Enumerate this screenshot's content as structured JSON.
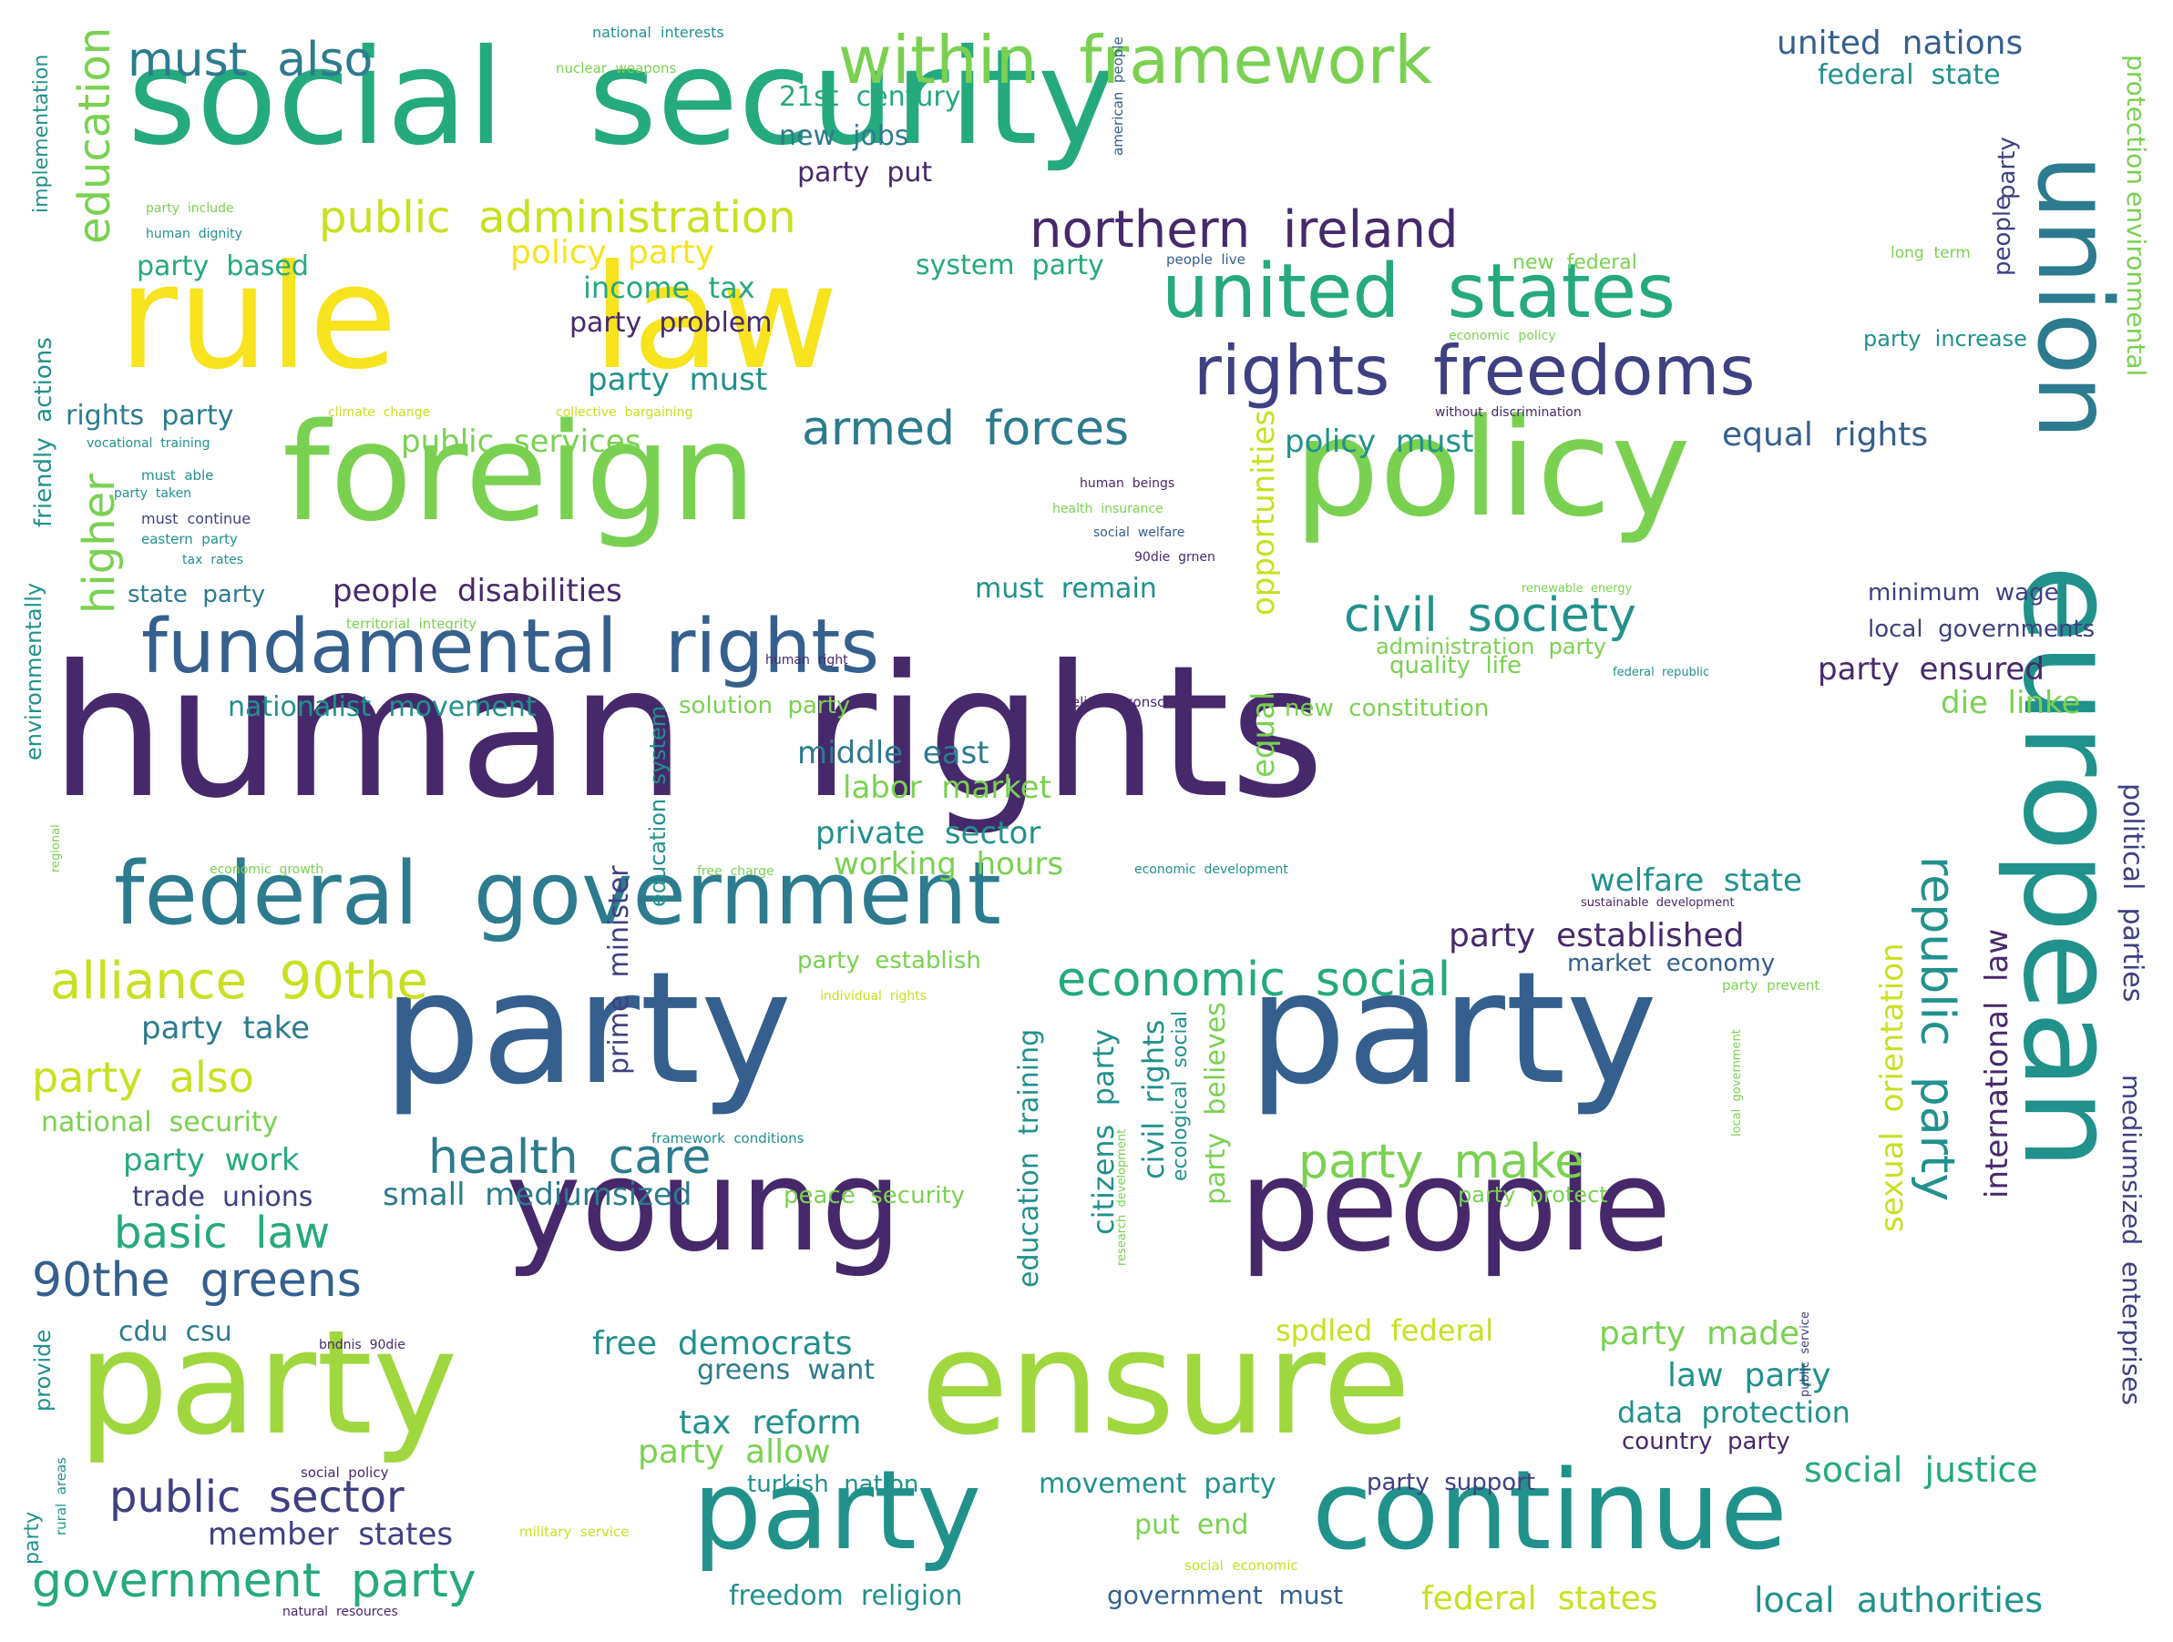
{
  "palette": {
    "purple": "#46296b",
    "indigo": "#3f3f82",
    "blue": "#355f8d",
    "steel": "#2c7b8e",
    "teal": "#21918c",
    "green": "#25a97e",
    "lime": "#7ad151",
    "lime2": "#9fd83e",
    "yellow": "#f7e31e",
    "chart": "#c8e020"
  },
  "words": [
    {
      "text": "human  rights",
      "color": "purple"
    },
    {
      "text": "social  security",
      "color": "green"
    },
    {
      "text": "rule",
      "color": "yellow"
    },
    {
      "text": "law",
      "color": "yellow"
    },
    {
      "text": "foreign",
      "color": "lime"
    },
    {
      "text": "policy",
      "color": "lime"
    },
    {
      "text": "union",
      "color": "steel"
    },
    {
      "text": "european",
      "color": "teal"
    },
    {
      "text": "party",
      "color": "blue"
    },
    {
      "text": "party",
      "color": "blue"
    },
    {
      "text": "party",
      "color": "lime2"
    },
    {
      "text": "ensure",
      "color": "lime2"
    },
    {
      "text": "young",
      "color": "purple"
    },
    {
      "text": "people",
      "color": "purple"
    },
    {
      "text": "party",
      "color": "teal"
    },
    {
      "text": "continue",
      "color": "teal"
    },
    {
      "text": "federal  government",
      "color": "steel"
    },
    {
      "text": "fundamental  rights",
      "color": "blue"
    },
    {
      "text": "united  states",
      "color": "green"
    },
    {
      "text": "rights  freedoms",
      "color": "indigo"
    },
    {
      "text": "within  framework",
      "color": "lime"
    },
    {
      "text": "must  also",
      "color": "steel"
    },
    {
      "text": "public  administration",
      "color": "chart"
    },
    {
      "text": "northern  ireland",
      "color": "purple"
    },
    {
      "text": "alliance  90the",
      "color": "chart"
    },
    {
      "text": "economic  social",
      "color": "green"
    },
    {
      "text": "civil  society",
      "color": "teal"
    },
    {
      "text": "armed  forces",
      "color": "steel"
    },
    {
      "text": "health  care",
      "color": "steel"
    },
    {
      "text": "party  make",
      "color": "lime"
    },
    {
      "text": "90the  greens",
      "color": "blue"
    },
    {
      "text": "basic  law",
      "color": "green"
    },
    {
      "text": "public  sector",
      "color": "indigo"
    },
    {
      "text": "government  party",
      "color": "green"
    },
    {
      "text": "party  also",
      "color": "chart"
    },
    {
      "text": "republic  party",
      "color": "teal"
    },
    {
      "text": "education",
      "color": "lime"
    },
    {
      "text": "higher",
      "color": "lime"
    },
    {
      "text": "united  nations",
      "color": "blue"
    },
    {
      "text": "federal  state",
      "color": "teal"
    },
    {
      "text": "21st  century",
      "color": "green"
    },
    {
      "text": "new  jobs",
      "color": "steel"
    },
    {
      "text": "party  put",
      "color": "purple"
    },
    {
      "text": "policy  party",
      "color": "yellow"
    },
    {
      "text": "party  based",
      "color": "green"
    },
    {
      "text": "income  tax",
      "color": "green"
    },
    {
      "text": "party  problem",
      "color": "purple"
    },
    {
      "text": "system  party",
      "color": "green"
    },
    {
      "text": "party  must",
      "color": "teal"
    },
    {
      "text": "rights  party",
      "color": "steel"
    },
    {
      "text": "public  services",
      "color": "lime"
    },
    {
      "text": "policy  must",
      "color": "teal"
    },
    {
      "text": "equal  rights",
      "color": "blue"
    },
    {
      "text": "people  disabilities",
      "color": "purple"
    },
    {
      "text": "must  remain",
      "color": "teal"
    },
    {
      "text": "state  party",
      "color": "steel"
    },
    {
      "text": "minimum  wage",
      "color": "indigo"
    },
    {
      "text": "local  governments",
      "color": "indigo"
    },
    {
      "text": "party  ensured",
      "color": "purple"
    },
    {
      "text": "die  linke",
      "color": "lime"
    },
    {
      "text": "nationalist  movement",
      "color": "teal"
    },
    {
      "text": "solution  party",
      "color": "lime"
    },
    {
      "text": "new  constitution",
      "color": "lime"
    },
    {
      "text": "quality  life",
      "color": "lime"
    },
    {
      "text": "middle  east",
      "color": "steel"
    },
    {
      "text": "labor  market",
      "color": "lime"
    },
    {
      "text": "private  sector",
      "color": "teal"
    },
    {
      "text": "working  hours",
      "color": "lime"
    },
    {
      "text": "welfare  state",
      "color": "teal"
    },
    {
      "text": "party  established",
      "color": "purple"
    },
    {
      "text": "market  economy",
      "color": "blue"
    },
    {
      "text": "party  establish",
      "color": "lime"
    },
    {
      "text": "party  take",
      "color": "steel"
    },
    {
      "text": "national  security",
      "color": "lime"
    },
    {
      "text": "party  work",
      "color": "green"
    },
    {
      "text": "trade  unions",
      "color": "indigo"
    },
    {
      "text": "small  mediumsized",
      "color": "steel"
    },
    {
      "text": "peace  security",
      "color": "lime"
    },
    {
      "text": "party  protect",
      "color": "lime"
    },
    {
      "text": "cdu  csu",
      "color": "steel"
    },
    {
      "text": "free  democrats",
      "color": "teal"
    },
    {
      "text": "greens  want",
      "color": "steel"
    },
    {
      "text": "spdled  federal",
      "color": "chart"
    },
    {
      "text": "party  made",
      "color": "lime"
    },
    {
      "text": "law  party",
      "color": "teal"
    },
    {
      "text": "tax  reform",
      "color": "teal"
    },
    {
      "text": "data  protection",
      "color": "teal"
    },
    {
      "text": "country  party",
      "color": "purple"
    },
    {
      "text": "party  allow",
      "color": "lime"
    },
    {
      "text": "social  justice",
      "color": "green"
    },
    {
      "text": "turkish  nation",
      "color": "teal"
    },
    {
      "text": "movement  party",
      "color": "teal"
    },
    {
      "text": "party  support",
      "color": "indigo"
    },
    {
      "text": "member  states",
      "color": "indigo"
    },
    {
      "text": "put  end",
      "color": "lime"
    },
    {
      "text": "freedom  religion",
      "color": "teal"
    },
    {
      "text": "government  must",
      "color": "blue"
    },
    {
      "text": "federal  states",
      "color": "chart"
    },
    {
      "text": "local  authorities",
      "color": "teal"
    },
    {
      "text": "international  law",
      "color": "purple"
    },
    {
      "text": "sexual  orientation",
      "color": "chart"
    },
    {
      "text": "opportunities",
      "color": "chart"
    },
    {
      "text": "equal",
      "color": "lime"
    },
    {
      "text": "environmental",
      "color": "lime"
    },
    {
      "text": "protection",
      "color": "lime"
    },
    {
      "text": "political  parties",
      "color": "indigo"
    },
    {
      "text": "mediumsized  enterprises",
      "color": "indigo"
    },
    {
      "text": "civil  rights",
      "color": "teal"
    },
    {
      "text": "citizens  party",
      "color": "teal"
    },
    {
      "text": "education  training",
      "color": "teal"
    },
    {
      "text": "party  believes",
      "color": "lime"
    },
    {
      "text": "prime  minister",
      "color": "indigo"
    },
    {
      "text": "education  system",
      "color": "teal"
    },
    {
      "text": "ecological  social",
      "color": "teal"
    },
    {
      "text": "friendly  actions",
      "color": "teal"
    },
    {
      "text": "implementation",
      "color": "teal"
    },
    {
      "text": "environmentally",
      "color": "teal"
    },
    {
      "text": "people",
      "color": "indigo"
    },
    {
      "text": "party",
      "color": "indigo"
    },
    {
      "text": "long  term",
      "color": "lime"
    },
    {
      "text": "party  increase",
      "color": "teal"
    },
    {
      "text": "administration  party",
      "color": "lime"
    },
    {
      "text": "national  interests",
      "color": "teal"
    },
    {
      "text": "nuclear  weapons",
      "color": "lime"
    },
    {
      "text": "american  people",
      "color": "blue"
    },
    {
      "text": "people  live",
      "color": "blue"
    },
    {
      "text": "new  federal",
      "color": "lime"
    },
    {
      "text": "economic  policy",
      "color": "lime"
    },
    {
      "text": "without  discrimination",
      "color": "purple"
    },
    {
      "text": "climate  change",
      "color": "chart"
    },
    {
      "text": "collective  bargaining",
      "color": "chart"
    },
    {
      "text": "vocational  training",
      "color": "teal"
    },
    {
      "text": "must  able",
      "color": "teal"
    },
    {
      "text": "party  taken",
      "color": "teal"
    },
    {
      "text": "must  continue",
      "color": "indigo"
    },
    {
      "text": "eastern  party",
      "color": "teal"
    },
    {
      "text": "tax  rates",
      "color": "teal"
    },
    {
      "text": "party  include",
      "color": "lime"
    },
    {
      "text": "human  dignity",
      "color": "teal"
    },
    {
      "text": "human  beings",
      "color": "purple"
    },
    {
      "text": "health  insurance",
      "color": "lime"
    },
    {
      "text": "social  welfare",
      "color": "blue"
    },
    {
      "text": "90die  grnen",
      "color": "purple"
    },
    {
      "text": "renewable  energy",
      "color": "lime"
    },
    {
      "text": "territorial  integrity",
      "color": "lime"
    },
    {
      "text": "human  right",
      "color": "purple"
    },
    {
      "text": "federal  republic",
      "color": "teal"
    },
    {
      "text": "religion  conscience",
      "color": "purple"
    },
    {
      "text": "economic  growth",
      "color": "lime"
    },
    {
      "text": "free  charge",
      "color": "lime"
    },
    {
      "text": "economic  development",
      "color": "teal"
    },
    {
      "text": "sustainable  development",
      "color": "purple"
    },
    {
      "text": "party  prevent",
      "color": "lime"
    },
    {
      "text": "individual  rights",
      "color": "chart"
    },
    {
      "text": "framework  conditions",
      "color": "teal"
    },
    {
      "text": "research  development",
      "color": "lime"
    },
    {
      "text": "local  government",
      "color": "lime"
    },
    {
      "text": "public  service",
      "color": "indigo"
    },
    {
      "text": "bndnis  90die",
      "color": "purple"
    },
    {
      "text": "social  policy",
      "color": "purple"
    },
    {
      "text": "military  service",
      "color": "chart"
    },
    {
      "text": "social  economic",
      "color": "chart"
    },
    {
      "text": "natural  resources",
      "color": "purple"
    },
    {
      "text": "regional",
      "color": "lime"
    },
    {
      "text": "provide",
      "color": "teal"
    },
    {
      "text": "rural  areas",
      "color": "teal"
    },
    {
      "text": "party",
      "color": "teal"
    }
  ]
}
